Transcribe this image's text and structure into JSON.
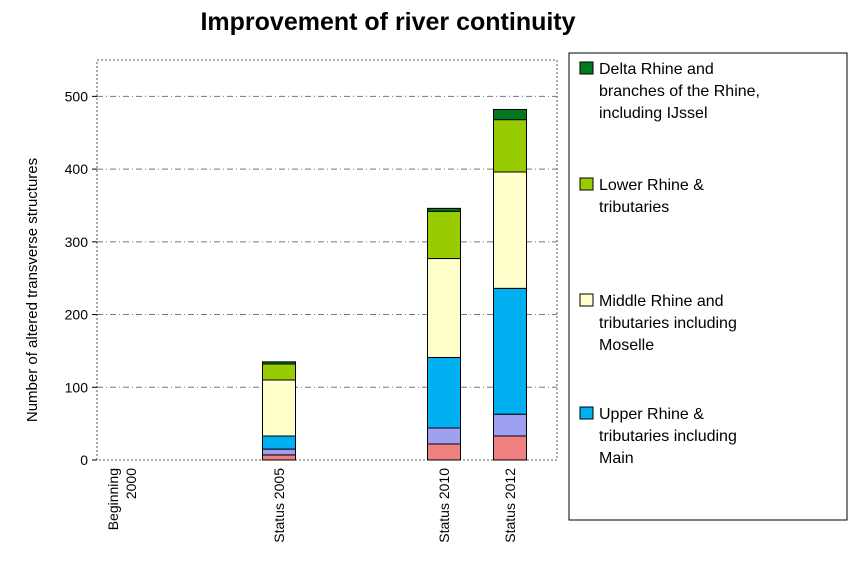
{
  "chart_data": {
    "type": "bar",
    "stacked": true,
    "title": "Improvement of river continuity",
    "ylabel": "Number of altered transverse  structures",
    "ylim": [
      0,
      550
    ],
    "yticks": [
      0,
      100,
      200,
      300,
      400,
      500
    ],
    "grid": true,
    "legend_position": "right",
    "categories": [
      [
        "Beginning",
        "2000"
      ],
      [
        "Status 2005"
      ],
      [
        "Status 2010"
      ],
      [
        "Status 2012"
      ]
    ],
    "series": [
      {
        "name": "",
        "color": "#f08080",
        "values": [
          0,
          7,
          22,
          33
        ]
      },
      {
        "name": "",
        "color": "#a0a0f0",
        "values": [
          0,
          8,
          22,
          30
        ]
      },
      {
        "name": "Upper Rhine & tributaries including Main",
        "color": "#00b0f0",
        "values": [
          0,
          18,
          97,
          173
        ]
      },
      {
        "name": "Middle Rhine and tributaries including Moselle",
        "color": "#ffffcc",
        "values": [
          0,
          77,
          136,
          160
        ]
      },
      {
        "name": "Lower Rhine & tributaries",
        "color": "#99cc00",
        "values": [
          0,
          22,
          65,
          72
        ]
      },
      {
        "name": "Delta Rhine and branches of the Rhine, including IJssel",
        "color": "#007a1c",
        "values": [
          0,
          3,
          4,
          14
        ]
      }
    ],
    "legend": [
      {
        "lines": [
          "Delta Rhine and",
          "branches of the Rhine,",
          "including IJssel"
        ],
        "color": "#007a1c"
      },
      {
        "lines": [
          "Lower Rhine &",
          "tributaries"
        ],
        "color": "#99cc00"
      },
      {
        "lines": [
          "Middle Rhine and",
          "tributaries including",
          "Moselle"
        ],
        "color": "#ffffcc"
      },
      {
        "lines": [
          "Upper Rhine &",
          "tributaries including",
          "Main"
        ],
        "color": "#00b0f0"
      }
    ]
  }
}
